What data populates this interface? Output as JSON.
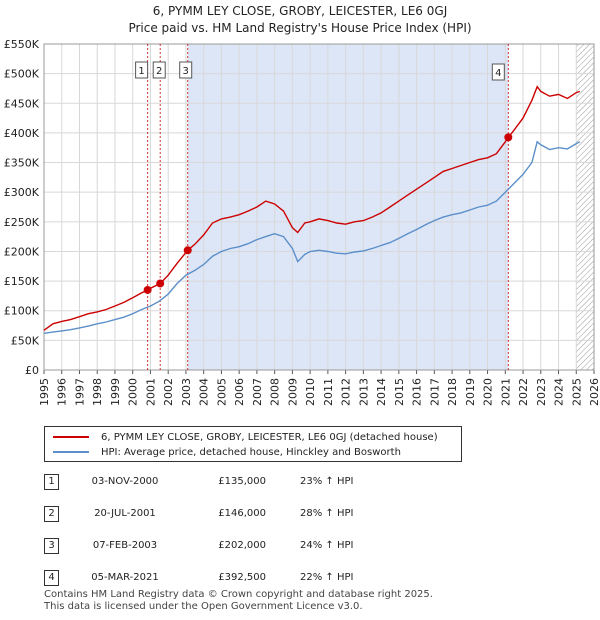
{
  "title_line1": "6, PYMM LEY CLOSE, GROBY, LEICESTER, LE6 0GJ",
  "title_line2": "Price paid vs. HM Land Registry's House Price Index (HPI)",
  "colors": {
    "property": "#cc0000",
    "hpi": "#5b8fc9",
    "shade": "#dde6f7",
    "grid": "#d8d8d8"
  },
  "legend": {
    "property_label": "6, PYMM LEY CLOSE, GROBY, LEICESTER, LE6 0GJ (detached house)",
    "hpi_label": "HPI: Average price, detached house, Hinckley and Bosworth"
  },
  "transactions": [
    {
      "num": "1",
      "date": "03-NOV-2000",
      "price": "£135,000",
      "hpi": "23% ↑ HPI"
    },
    {
      "num": "2",
      "date": "20-JUL-2001",
      "price": "£146,000",
      "hpi": "28% ↑ HPI"
    },
    {
      "num": "3",
      "date": "07-FEB-2003",
      "price": "£202,000",
      "hpi": "24% ↑ HPI"
    },
    {
      "num": "4",
      "date": "05-MAR-2021",
      "price": "£392,500",
      "hpi": "22% ↑ HPI"
    }
  ],
  "footer": {
    "line1": "Contains HM Land Registry data © Crown copyright and database right 2025.",
    "line2": "This data is licensed under the Open Government Licence v3.0."
  },
  "chart_data": {
    "type": "line",
    "title": "6, PYMM LEY CLOSE, GROBY, LEICESTER, LE6 0GJ",
    "subtitle": "Price paid vs. HM Land Registry's House Price Index (HPI)",
    "xlabel": "",
    "ylabel": "",
    "xlim": [
      1995,
      2026
    ],
    "ylim": [
      0,
      550000
    ],
    "grid": true,
    "legend_position": "bottom",
    "x_ticks": [
      "1995",
      "1996",
      "1997",
      "1998",
      "1999",
      "2000",
      "2001",
      "2002",
      "2003",
      "2004",
      "2005",
      "2006",
      "2007",
      "2008",
      "2009",
      "2010",
      "2011",
      "2012",
      "2013",
      "2014",
      "2015",
      "2016",
      "2017",
      "2018",
      "2019",
      "2020",
      "2021",
      "2022",
      "2023",
      "2024",
      "2025",
      "2026"
    ],
    "y_ticks": [
      {
        "value": 0,
        "label": "£0"
      },
      {
        "value": 50000,
        "label": "£50K"
      },
      {
        "value": 100000,
        "label": "£100K"
      },
      {
        "value": 150000,
        "label": "£150K"
      },
      {
        "value": 200000,
        "label": "£200K"
      },
      {
        "value": 250000,
        "label": "£250K"
      },
      {
        "value": 300000,
        "label": "£300K"
      },
      {
        "value": 350000,
        "label": "£350K"
      },
      {
        "value": 400000,
        "label": "£400K"
      },
      {
        "value": 450000,
        "label": "£450K"
      },
      {
        "value": 500000,
        "label": "£500K"
      },
      {
        "value": 550000,
        "label": "£550K"
      }
    ],
    "shaded_range": [
      2003.1,
      2021.17
    ],
    "future_hatch_from": 2025.0,
    "series": [
      {
        "name": "6, PYMM LEY CLOSE, GROBY, LEICESTER, LE6 0GJ (detached house)",
        "color": "#cc0000",
        "x": [
          1995.0,
          1995.5,
          1996.0,
          1996.5,
          1997.0,
          1997.5,
          1998.0,
          1998.5,
          1999.0,
          1999.5,
          2000.0,
          2000.5,
          2000.84,
          2001.0,
          2001.55,
          2002.0,
          2002.5,
          2003.1,
          2003.5,
          2004.0,
          2004.5,
          2005.0,
          2005.5,
          2006.0,
          2006.5,
          2007.0,
          2007.5,
          2008.0,
          2008.5,
          2009.0,
          2009.3,
          2009.7,
          2010.0,
          2010.5,
          2011.0,
          2011.5,
          2012.0,
          2012.5,
          2013.0,
          2013.5,
          2014.0,
          2014.5,
          2015.0,
          2015.5,
          2016.0,
          2016.5,
          2017.0,
          2017.5,
          2018.0,
          2018.5,
          2019.0,
          2019.5,
          2020.0,
          2020.5,
          2021.0,
          2021.17,
          2021.5,
          2022.0,
          2022.5,
          2022.8,
          2023.0,
          2023.5,
          2024.0,
          2024.5,
          2025.0,
          2025.2
        ],
        "values": [
          67000,
          78000,
          82000,
          85000,
          90000,
          95000,
          98000,
          102000,
          108000,
          114000,
          122000,
          130000,
          135000,
          138000,
          146000,
          160000,
          180000,
          202000,
          212000,
          228000,
          248000,
          255000,
          258000,
          262000,
          268000,
          275000,
          285000,
          280000,
          268000,
          240000,
          232000,
          248000,
          250000,
          255000,
          252000,
          248000,
          246000,
          250000,
          252000,
          258000,
          265000,
          275000,
          285000,
          295000,
          305000,
          315000,
          325000,
          335000,
          340000,
          345000,
          350000,
          355000,
          358000,
          365000,
          385000,
          392500,
          405000,
          425000,
          455000,
          478000,
          470000,
          462000,
          465000,
          458000,
          468000,
          470000
        ]
      },
      {
        "name": "HPI: Average price, detached house, Hinckley and Bosworth",
        "color": "#5b8fc9",
        "x": [
          1995.0,
          1995.5,
          1996.0,
          1996.5,
          1997.0,
          1997.5,
          1998.0,
          1998.5,
          1999.0,
          1999.5,
          2000.0,
          2000.5,
          2001.0,
          2001.5,
          2002.0,
          2002.5,
          2003.0,
          2003.5,
          2004.0,
          2004.5,
          2005.0,
          2005.5,
          2006.0,
          2006.5,
          2007.0,
          2007.5,
          2008.0,
          2008.5,
          2009.0,
          2009.3,
          2009.7,
          2010.0,
          2010.5,
          2011.0,
          2011.5,
          2012.0,
          2012.5,
          2013.0,
          2013.5,
          2014.0,
          2014.5,
          2015.0,
          2015.5,
          2016.0,
          2016.5,
          2017.0,
          2017.5,
          2018.0,
          2018.5,
          2019.0,
          2019.5,
          2020.0,
          2020.5,
          2021.0,
          2021.5,
          2022.0,
          2022.5,
          2022.8,
          2023.0,
          2023.5,
          2024.0,
          2024.5,
          2025.0,
          2025.2
        ],
        "values": [
          62000,
          64000,
          66000,
          68000,
          71000,
          74000,
          78000,
          81000,
          85000,
          89000,
          95000,
          102000,
          108000,
          116000,
          128000,
          146000,
          160000,
          168000,
          178000,
          192000,
          200000,
          205000,
          208000,
          213000,
          220000,
          225000,
          230000,
          225000,
          205000,
          183000,
          195000,
          200000,
          202000,
          200000,
          197000,
          196000,
          199000,
          201000,
          205000,
          210000,
          215000,
          222000,
          230000,
          237000,
          245000,
          252000,
          258000,
          262000,
          265000,
          270000,
          275000,
          278000,
          285000,
          300000,
          315000,
          330000,
          350000,
          385000,
          380000,
          372000,
          375000,
          373000,
          382000,
          385000
        ]
      }
    ],
    "markers": [
      {
        "label": "1",
        "x": 2000.84,
        "value": 135000
      },
      {
        "label": "2",
        "x": 2001.55,
        "value": 146000
      },
      {
        "label": "3",
        "x": 2003.1,
        "value": 202000
      },
      {
        "label": "4",
        "x": 2021.17,
        "value": 392500
      }
    ]
  }
}
